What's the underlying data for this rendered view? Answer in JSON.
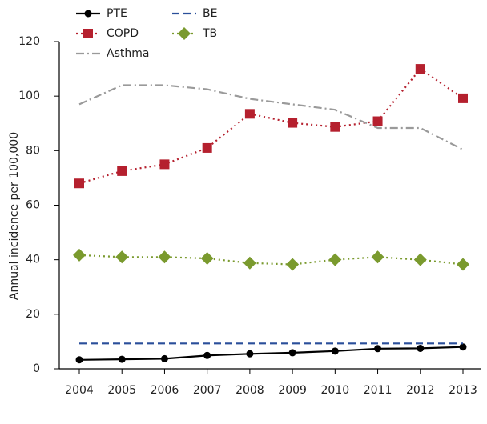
{
  "chart_data": {
    "type": "line",
    "y_label": "Annual incidence per 100,000",
    "categories": [
      "2004",
      "2005",
      "2006",
      "2007",
      "2008",
      "2009",
      "2010",
      "2011",
      "2012",
      "2013"
    ],
    "ylim": [
      0,
      120
    ],
    "yticks": [
      0,
      20,
      40,
      60,
      80,
      100,
      120
    ],
    "series": [
      {
        "name": "PTE",
        "color": "#000000",
        "line_style": "solid",
        "marker": "circle",
        "values": [
          3.3,
          3.5,
          3.7,
          4.9,
          5.5,
          5.9,
          6.5,
          7.4,
          7.5,
          8.0
        ]
      },
      {
        "name": "BE",
        "color": "#2a4f9a",
        "line_style": "dashed",
        "marker": "none",
        "values": [
          9.3,
          9.3,
          9.3,
          9.3,
          9.3,
          9.3,
          9.3,
          9.3,
          9.3,
          9.3
        ]
      },
      {
        "name": "COPD",
        "color": "#b5202e",
        "line_style": "dotted",
        "marker": "square",
        "values": [
          68,
          72.5,
          75,
          81,
          93.5,
          90.2,
          88.7,
          90.8,
          110,
          99.2
        ]
      },
      {
        "name": "TB",
        "color": "#7a9a2e",
        "line_style": "dotted",
        "marker": "diamond",
        "values": [
          41.7,
          41,
          41,
          40.5,
          38.8,
          38.3,
          40,
          41,
          40,
          38.3
        ]
      },
      {
        "name": "Asthma",
        "color": "#9a9a9a",
        "line_style": "dashdot",
        "marker": "none",
        "values": [
          97,
          104,
          104,
          102.5,
          99,
          97,
          95,
          88.3,
          88.3,
          80.4
        ]
      }
    ]
  }
}
